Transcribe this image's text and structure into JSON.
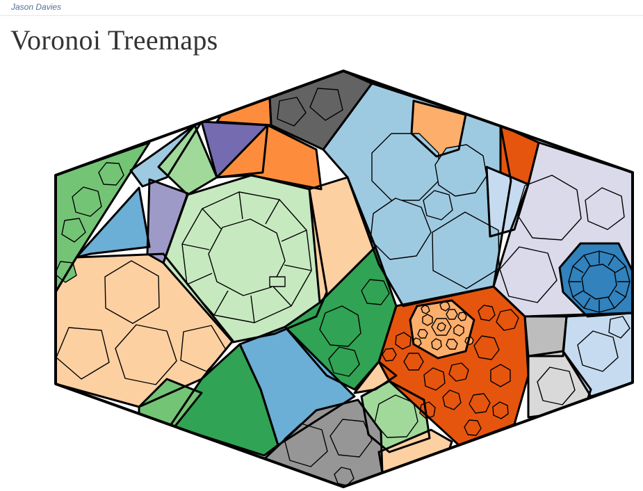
{
  "header": {
    "author": "Jason Davies",
    "title": "Voronoi Treemaps"
  },
  "palette": {
    "green": "#74c476",
    "dark_green": "#31a354",
    "light_green": "#a1d99b",
    "pale_green": "#c7e9c0",
    "blue": "#6baed6",
    "sky_blue": "#9ecae1",
    "pale_blue": "#c6dbef",
    "dark_blue": "#3182bd",
    "orange": "#fd8d3c",
    "dark_orange": "#e6550d",
    "light_orange": "#fdae6b",
    "peach": "#fdd0a2",
    "purple": "#756bb1",
    "lavender": "#9e9ac8",
    "pale_lavender": "#dadaeb",
    "dark_gray": "#636363",
    "gray": "#969696",
    "light_gray": "#bdbdbd",
    "pale_gray": "#d9d9d9"
  }
}
